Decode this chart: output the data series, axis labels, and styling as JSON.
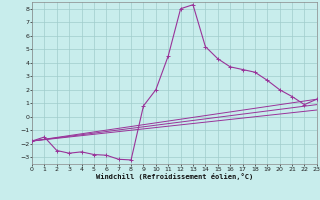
{
  "xlabel": "Windchill (Refroidissement éolien,°C)",
  "background_color": "#c8edec",
  "grid_color": "#a0cccc",
  "line_color": "#993399",
  "xlim": [
    0,
    23
  ],
  "ylim": [
    -3.5,
    8.5
  ],
  "xticks": [
    0,
    1,
    2,
    3,
    4,
    5,
    6,
    7,
    8,
    9,
    10,
    11,
    12,
    13,
    14,
    15,
    16,
    17,
    18,
    19,
    20,
    21,
    22,
    23
  ],
  "yticks": [
    -3,
    -2,
    -1,
    0,
    1,
    2,
    3,
    4,
    5,
    6,
    7,
    8
  ],
  "series1_x": [
    0,
    1,
    2,
    3,
    4,
    5,
    6,
    7,
    8,
    9,
    10,
    11,
    12,
    13,
    14,
    15,
    16,
    17,
    18,
    19,
    20,
    21,
    22,
    23
  ],
  "series1_y": [
    -1.8,
    -1.5,
    -2.5,
    -2.7,
    -2.6,
    -2.8,
    -2.85,
    -3.15,
    -3.2,
    0.8,
    2.0,
    4.5,
    8.0,
    8.3,
    5.2,
    4.3,
    3.7,
    3.5,
    3.3,
    2.7,
    2.0,
    1.5,
    0.9,
    1.3
  ],
  "series2_x": [
    0,
    23
  ],
  "series2_y": [
    -1.8,
    1.3
  ],
  "series3_x": [
    0,
    23
  ],
  "series3_y": [
    -1.8,
    0.5
  ],
  "series4_x": [
    0,
    23
  ],
  "series4_y": [
    -1.8,
    0.9
  ]
}
